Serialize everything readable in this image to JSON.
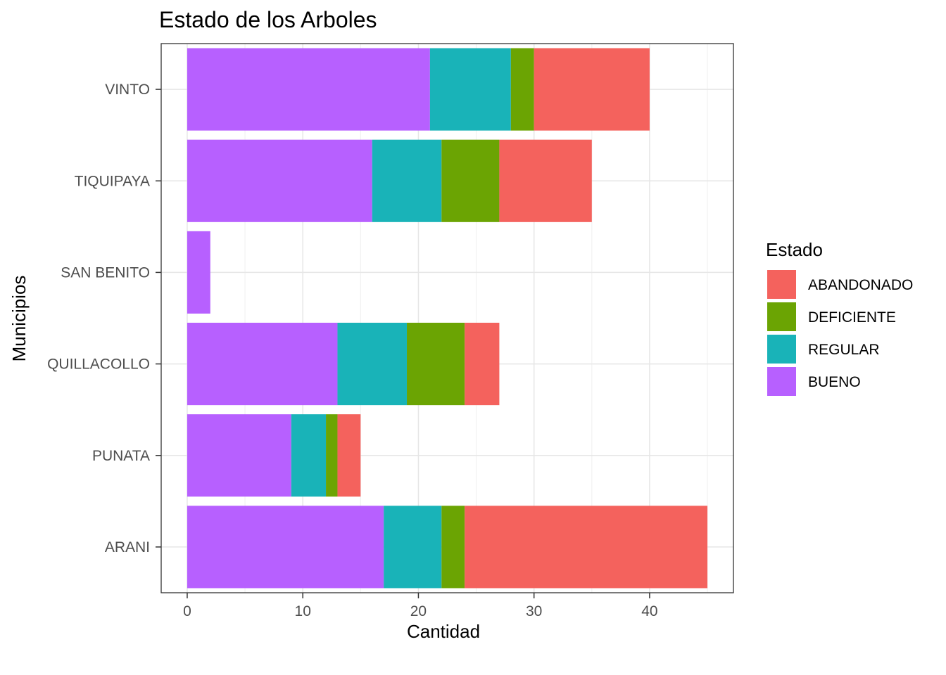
{
  "chart_data": {
    "type": "bar",
    "orientation": "horizontal",
    "stacked": true,
    "title": "Estado de los Arboles",
    "xlabel": "Cantidad",
    "ylabel": "Municipios",
    "xlim": [
      -2.25,
      47.25
    ],
    "xticks": [
      0,
      10,
      20,
      30,
      40
    ],
    "categories": [
      "VINTO",
      "TIQUIPAYA",
      "SAN BENITO",
      "QUILLACOLLO",
      "PUNATA",
      "ARANI"
    ],
    "series": [
      {
        "name": "BUENO",
        "color": "#B760FF",
        "values": [
          21,
          16,
          2,
          13,
          9,
          17
        ]
      },
      {
        "name": "REGULAR",
        "color": "#19B3B8",
        "values": [
          7,
          6,
          0,
          6,
          3,
          5
        ]
      },
      {
        "name": "DEFICIENTE",
        "color": "#6BA403",
        "values": [
          2,
          5,
          0,
          5,
          1,
          2
        ]
      },
      {
        "name": "ABANDONADO",
        "color": "#F4625D",
        "values": [
          10,
          8,
          0,
          3,
          2,
          21
        ]
      }
    ],
    "legend": {
      "title": "Estado",
      "position": "right",
      "order": [
        "ABANDONADO",
        "DEFICIENTE",
        "REGULAR",
        "BUENO"
      ]
    },
    "grid": true
  }
}
